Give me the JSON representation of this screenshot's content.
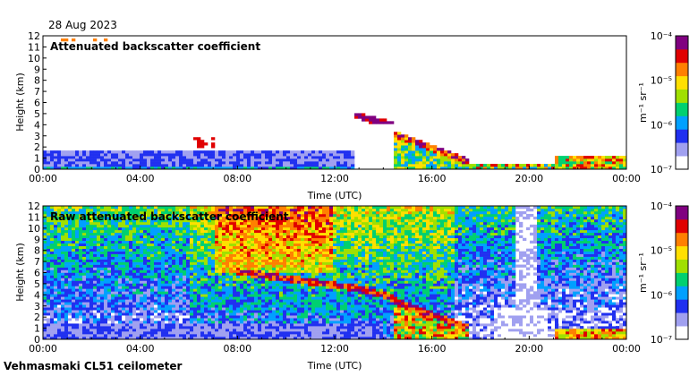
{
  "date_label": "28 Aug 2023",
  "footer_label": "Vehmasmaki CL51 ceilometer",
  "colorbar": {
    "ticks": [
      "10⁻⁴",
      "10⁻⁵",
      "10⁻⁶",
      "10⁻⁷"
    ],
    "tick_values": [
      -4,
      -5,
      -6,
      -7
    ],
    "unit_label": "m⁻¹ sr⁻¹",
    "scale": "log",
    "colors": [
      "#ffffff",
      "#a0a0f0",
      "#2030f0",
      "#00a0ff",
      "#00d070",
      "#a0e000",
      "#ffe000",
      "#ff8000",
      "#e00000",
      "#800080"
    ]
  },
  "chart_data": [
    {
      "type": "heatmap",
      "title": "Attenuated backscatter coefficient",
      "xlabel": "Time (UTC)",
      "ylabel": "Height (km)",
      "x_ticks": [
        "00:00",
        "04:00",
        "08:00",
        "12:00",
        "16:00",
        "20:00",
        "00:00"
      ],
      "x_tick_hours": [
        0,
        4,
        8,
        12,
        16,
        20,
        24
      ],
      "y_ticks": [
        0,
        1,
        2,
        3,
        4,
        5,
        6,
        7,
        8,
        9,
        10,
        11,
        12
      ],
      "xlim_hours": [
        0,
        24
      ],
      "ylim_km": [
        0,
        12
      ],
      "color_scale": "log",
      "clim_exponent": [
        -7,
        -4
      ]
    },
    {
      "type": "heatmap",
      "title": "Raw attenuated backscatter coefficient",
      "xlabel": "Time (UTC)",
      "ylabel": "Height (km)",
      "x_ticks": [
        "00:00",
        "04:00",
        "08:00",
        "12:00",
        "16:00",
        "20:00",
        "00:00"
      ],
      "x_tick_hours": [
        0,
        4,
        8,
        12,
        16,
        20,
        24
      ],
      "y_ticks": [
        0,
        1,
        2,
        3,
        4,
        5,
        6,
        7,
        8,
        9,
        10,
        11,
        12
      ],
      "xlim_hours": [
        0,
        24
      ],
      "ylim_km": [
        0,
        12
      ],
      "color_scale": "log",
      "clim_exponent": [
        -7,
        -4
      ]
    }
  ]
}
